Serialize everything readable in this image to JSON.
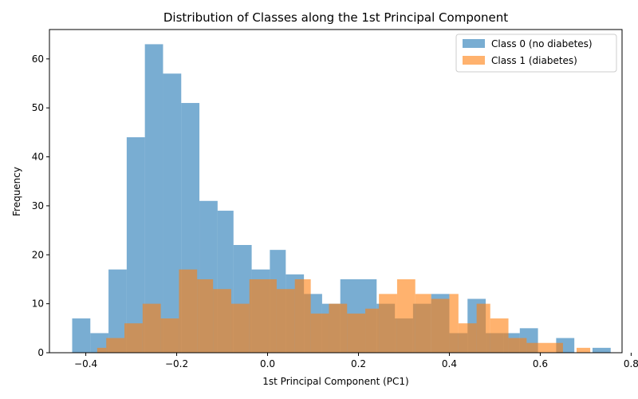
{
  "chart_data": {
    "type": "bar",
    "subtype": "overlapping-histogram",
    "title": "Distribution of Classes along the 1st Principal Component",
    "xlabel": "1st Principal Component (PC1)",
    "ylabel": "Frequency",
    "xlim": [
      -0.48,
      0.78
    ],
    "ylim": [
      0,
      66
    ],
    "xticks": [
      -0.4,
      -0.2,
      0.0,
      0.2,
      0.4,
      0.6,
      0.8
    ],
    "xtick_labels": [
      "−0.4",
      "−0.2",
      "0.0",
      "0.2",
      "0.4",
      "0.6",
      "0.8"
    ],
    "yticks": [
      0,
      10,
      20,
      30,
      40,
      50,
      60
    ],
    "ytick_labels": [
      "0",
      "10",
      "20",
      "30",
      "40",
      "50",
      "60"
    ],
    "grid": false,
    "legend_position": "top-right",
    "series": [
      {
        "name": "Class 0 (no diabetes)",
        "color": "#1f77b4",
        "opacity": 0.6,
        "bins": [
          {
            "x0": -0.43,
            "x1": -0.39,
            "value": 7
          },
          {
            "x0": -0.39,
            "x1": -0.35,
            "value": 4
          },
          {
            "x0": -0.35,
            "x1": -0.31,
            "value": 17
          },
          {
            "x0": -0.31,
            "x1": -0.27,
            "value": 44
          },
          {
            "x0": -0.27,
            "x1": -0.23,
            "value": 63
          },
          {
            "x0": -0.23,
            "x1": -0.19,
            "value": 57
          },
          {
            "x0": -0.19,
            "x1": -0.15,
            "value": 51
          },
          {
            "x0": -0.15,
            "x1": -0.11,
            "value": 31
          },
          {
            "x0": -0.11,
            "x1": -0.075,
            "value": 29
          },
          {
            "x0": -0.075,
            "x1": -0.035,
            "value": 22
          },
          {
            "x0": -0.035,
            "x1": 0.005,
            "value": 17
          },
          {
            "x0": 0.005,
            "x1": 0.04,
            "value": 21
          },
          {
            "x0": 0.04,
            "x1": 0.08,
            "value": 16
          },
          {
            "x0": 0.08,
            "x1": 0.12,
            "value": 12
          },
          {
            "x0": 0.12,
            "x1": 0.16,
            "value": 10
          },
          {
            "x0": 0.16,
            "x1": 0.2,
            "value": 15
          },
          {
            "x0": 0.2,
            "x1": 0.24,
            "value": 15
          },
          {
            "x0": 0.24,
            "x1": 0.28,
            "value": 10
          },
          {
            "x0": 0.28,
            "x1": 0.32,
            "value": 7
          },
          {
            "x0": 0.32,
            "x1": 0.36,
            "value": 10
          },
          {
            "x0": 0.36,
            "x1": 0.4,
            "value": 12
          },
          {
            "x0": 0.4,
            "x1": 0.44,
            "value": 4
          },
          {
            "x0": 0.44,
            "x1": 0.48,
            "value": 11
          },
          {
            "x0": 0.48,
            "x1": 0.52,
            "value": 4
          },
          {
            "x0": 0.52,
            "x1": 0.555,
            "value": 4
          },
          {
            "x0": 0.555,
            "x1": 0.595,
            "value": 5
          },
          {
            "x0": 0.595,
            "x1": 0.635,
            "value": 0
          },
          {
            "x0": 0.635,
            "x1": 0.675,
            "value": 3
          },
          {
            "x0": 0.675,
            "x1": 0.715,
            "value": 0
          },
          {
            "x0": 0.715,
            "x1": 0.755,
            "value": 1
          }
        ]
      },
      {
        "name": "Class 1 (diabetes)",
        "color": "#ff7f0e",
        "opacity": 0.6,
        "bins": [
          {
            "x0": -0.375,
            "x1": -0.355,
            "value": 1
          },
          {
            "x0": -0.355,
            "x1": -0.315,
            "value": 3
          },
          {
            "x0": -0.315,
            "x1": -0.275,
            "value": 6
          },
          {
            "x0": -0.275,
            "x1": -0.235,
            "value": 10
          },
          {
            "x0": -0.235,
            "x1": -0.195,
            "value": 7
          },
          {
            "x0": -0.195,
            "x1": -0.155,
            "value": 17
          },
          {
            "x0": -0.155,
            "x1": -0.12,
            "value": 15
          },
          {
            "x0": -0.12,
            "x1": -0.08,
            "value": 13
          },
          {
            "x0": -0.08,
            "x1": -0.04,
            "value": 10
          },
          {
            "x0": -0.04,
            "x1": 0.0,
            "value": 15
          },
          {
            "x0": 0.0,
            "x1": 0.02,
            "value": 15
          },
          {
            "x0": 0.02,
            "x1": 0.06,
            "value": 13
          },
          {
            "x0": 0.06,
            "x1": 0.095,
            "value": 15
          },
          {
            "x0": 0.095,
            "x1": 0.135,
            "value": 8
          },
          {
            "x0": 0.135,
            "x1": 0.175,
            "value": 10
          },
          {
            "x0": 0.175,
            "x1": 0.215,
            "value": 8
          },
          {
            "x0": 0.215,
            "x1": 0.245,
            "value": 9
          },
          {
            "x0": 0.245,
            "x1": 0.285,
            "value": 12
          },
          {
            "x0": 0.285,
            "x1": 0.325,
            "value": 15
          },
          {
            "x0": 0.325,
            "x1": 0.36,
            "value": 12
          },
          {
            "x0": 0.36,
            "x1": 0.4,
            "value": 11
          },
          {
            "x0": 0.4,
            "x1": 0.42,
            "value": 12
          },
          {
            "x0": 0.42,
            "x1": 0.46,
            "value": 6
          },
          {
            "x0": 0.46,
            "x1": 0.49,
            "value": 10
          },
          {
            "x0": 0.49,
            "x1": 0.53,
            "value": 7
          },
          {
            "x0": 0.53,
            "x1": 0.57,
            "value": 3
          },
          {
            "x0": 0.57,
            "x1": 0.615,
            "value": 2
          },
          {
            "x0": 0.615,
            "x1": 0.65,
            "value": 2
          },
          {
            "x0": 0.65,
            "x1": 0.68,
            "value": 0
          },
          {
            "x0": 0.68,
            "x1": 0.71,
            "value": 1
          }
        ]
      }
    ]
  }
}
